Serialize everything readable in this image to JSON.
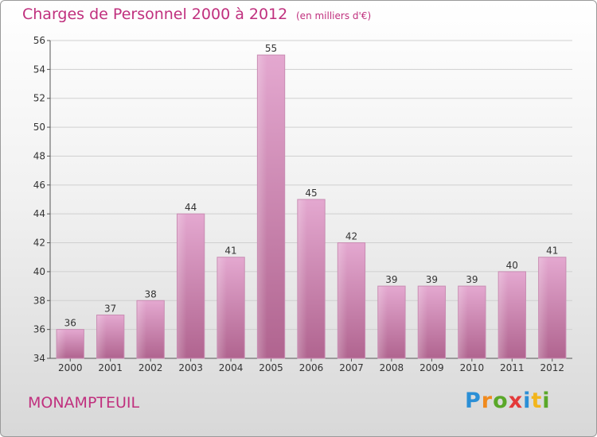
{
  "header": {
    "title": "Charges de Personnel 2000 à 2012",
    "subtitle": "(en milliers d'€)"
  },
  "footer": {
    "commune": "MONAMPTEUIL",
    "logo_text": "Proxiti"
  },
  "colors": {
    "accent": "#c0307e",
    "bar_top": "#e4a8d0",
    "bar_bottom": "#b0648f"
  },
  "chart_data": {
    "type": "bar",
    "title": "Charges de Personnel 2000 à 2012",
    "subtitle": "(en milliers d'€)",
    "categories": [
      "2000",
      "2001",
      "2002",
      "2003",
      "2004",
      "2005",
      "2006",
      "2007",
      "2008",
      "2009",
      "2010",
      "2011",
      "2012"
    ],
    "values": [
      36,
      37,
      38,
      44,
      41,
      55,
      45,
      42,
      39,
      39,
      39,
      40,
      41
    ],
    "ylim": [
      34,
      56
    ],
    "yticks": [
      34,
      36,
      38,
      40,
      42,
      44,
      46,
      48,
      50,
      52,
      54,
      56
    ],
    "grid": true,
    "legend": "none"
  }
}
